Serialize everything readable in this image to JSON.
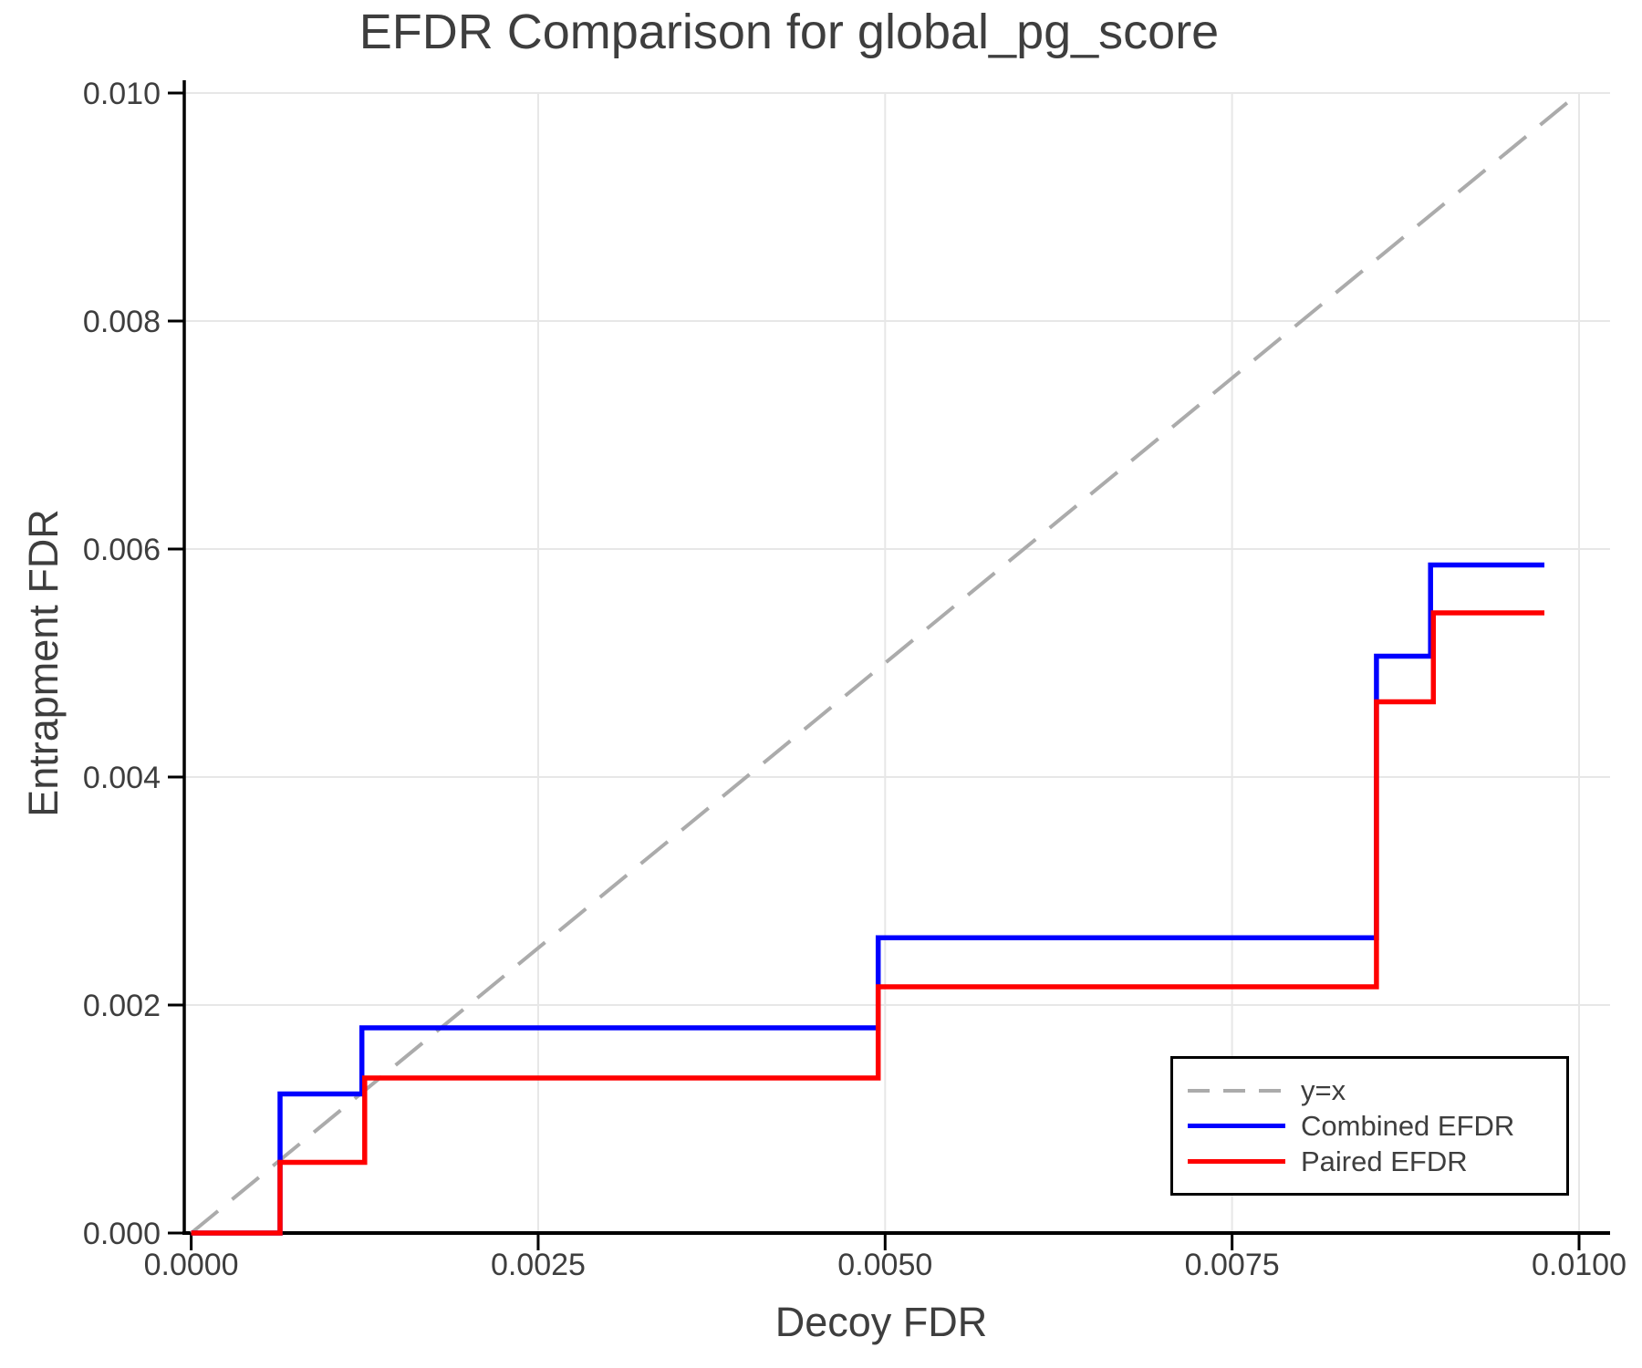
{
  "chart_data": {
    "type": "line",
    "title": "EFDR Comparison for global_pg_score",
    "xlabel": "Decoy FDR",
    "ylabel": "Entrapment FDR",
    "xlim": [
      0.0,
      0.01
    ],
    "ylim": [
      0.0,
      0.01
    ],
    "x_ticks": {
      "values": [
        0.0,
        0.0025,
        0.005,
        0.0075,
        0.01
      ],
      "labels": [
        "0.0000",
        "0.0025",
        "0.0050",
        "0.0075",
        "0.0100"
      ]
    },
    "y_ticks": {
      "values": [
        0.0,
        0.002,
        0.004,
        0.006,
        0.008,
        0.01
      ],
      "labels": [
        "0.000",
        "0.002",
        "0.004",
        "0.006",
        "0.008",
        "0.010"
      ]
    },
    "grid": true,
    "legend": {
      "position": "bottom-right"
    },
    "colors": {
      "grid": "#e7e7e7",
      "axis": "#000000",
      "text": "#3e3e3e",
      "reference": "#ababab",
      "combined": "#0000ff",
      "paired": "#ff0000",
      "background": "#ffffff"
    },
    "series": [
      {
        "name": "y=x",
        "role": "reference",
        "style": "dashed",
        "color": "#ababab",
        "points": [
          [
            0.0,
            0.0
          ],
          [
            0.01,
            0.01
          ]
        ]
      },
      {
        "name": "Combined EFDR",
        "role": "data",
        "style": "solid",
        "color": "#0000ff",
        "points": [
          [
            0.0,
            0.0
          ],
          [
            0.00064,
            0.0
          ],
          [
            0.00064,
            0.00122
          ],
          [
            0.00123,
            0.00122
          ],
          [
            0.00123,
            0.0018
          ],
          [
            0.00495,
            0.0018
          ],
          [
            0.00495,
            0.00259
          ],
          [
            0.00854,
            0.00259
          ],
          [
            0.00854,
            0.00506
          ],
          [
            0.00893,
            0.00506
          ],
          [
            0.00893,
            0.00586
          ],
          [
            0.00975,
            0.00586
          ]
        ]
      },
      {
        "name": "Paired EFDR",
        "role": "data",
        "style": "solid",
        "color": "#ff0000",
        "points": [
          [
            0.0,
            0.0
          ],
          [
            0.00064,
            0.0
          ],
          [
            0.00064,
            0.00062
          ],
          [
            0.00125,
            0.00062
          ],
          [
            0.00125,
            0.00136
          ],
          [
            0.00495,
            0.00136
          ],
          [
            0.00495,
            0.00216
          ],
          [
            0.00854,
            0.00216
          ],
          [
            0.00854,
            0.00466
          ],
          [
            0.00895,
            0.00466
          ],
          [
            0.00895,
            0.00544
          ],
          [
            0.00975,
            0.00544
          ]
        ]
      }
    ]
  }
}
